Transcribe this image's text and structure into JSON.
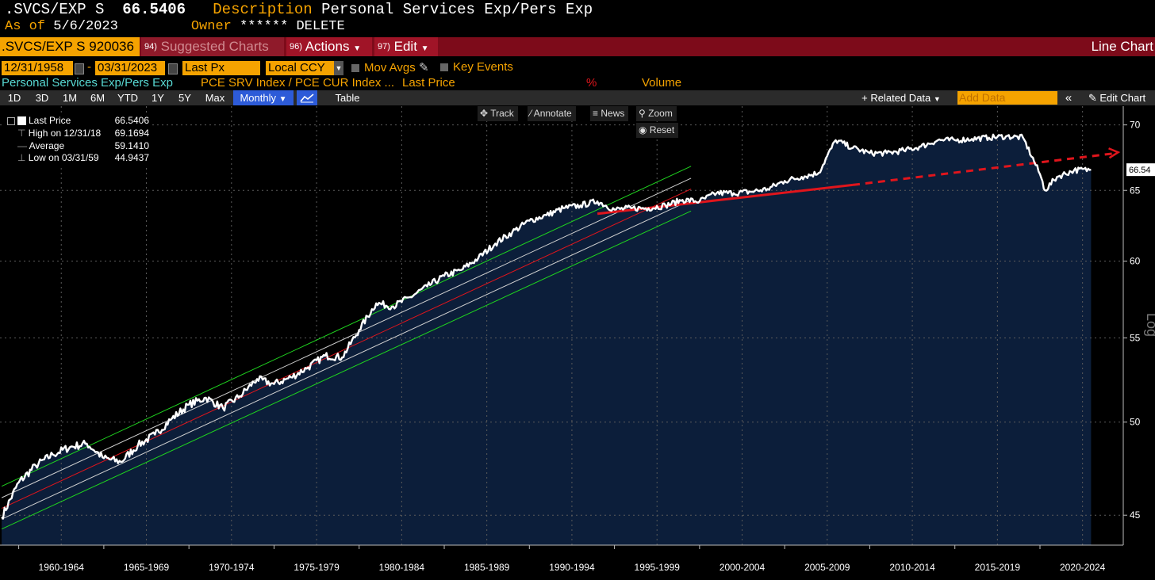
{
  "header": {
    "ticker": ".SVCS/EXP S",
    "last_value": "66.5406",
    "description_label": "Description",
    "description": "Personal Services Exp/Pers Exp",
    "as_of_label": "As of",
    "as_of_date": "5/6/2023",
    "owner_label": "Owner",
    "owner_value": "****** DELETE"
  },
  "toolbar": {
    "security": ".SVCS/EXP S 920036",
    "suggested_num": "94)",
    "suggested": "Suggested Charts",
    "actions_num": "96)",
    "actions": "Actions",
    "edit_num": "97)",
    "edit": "Edit",
    "chart_type": "Line Chart"
  },
  "range": {
    "start": "12/31/1958",
    "dash": "-",
    "end": "03/31/2023",
    "field": "Last Px",
    "currency": "Local CCY",
    "mov_avgs": "Mov Avgs",
    "key_events": "Key Events"
  },
  "series_row": {
    "name": "Personal Services Exp/Pers Exp",
    "formula": "PCE SRV Index / PCE CUR Index ...",
    "field": "Last Price",
    "pct": "%",
    "volume": "Volume"
  },
  "periods": [
    "1D",
    "3D",
    "1M",
    "6M",
    "YTD",
    "1Y",
    "5Y",
    "Max"
  ],
  "frequency": "Monthly",
  "table_label": "Table",
  "related_data": "Related Data",
  "add_data_placeholder": "Add Data",
  "edit_chart": "Edit Chart",
  "chart_tools": {
    "track": "Track",
    "annotate": "Annotate",
    "news": "News",
    "zoom": "Zoom",
    "reset": "Reset"
  },
  "legend": {
    "last_label": "Last Price",
    "last_value": "66.5406",
    "high_label": "High on 12/31/18",
    "high_value": "69.1694",
    "avg_label": "Average",
    "avg_value": "59.1410",
    "low_label": "Low on 03/31/59",
    "low_value": "44.9437"
  },
  "colors": {
    "accent": "#f5a300",
    "toolbar": "#7d0b1a",
    "area": "#0c1e3a",
    "trend_red": "#e0151c",
    "channel_green": "#1fd41f"
  },
  "chart_data": {
    "type": "area",
    "title": "Personal Services Exp/Pers Exp",
    "scale": "log",
    "ylim": [
      43.5,
      71.5
    ],
    "y_ticks": [
      45,
      50,
      55,
      60,
      65,
      70
    ],
    "x_labels": [
      "1960-1964",
      "1965-1969",
      "1970-1974",
      "1975-1979",
      "1980-1984",
      "1985-1989",
      "1990-1994",
      "1995-1999",
      "2000-2004",
      "2005-2009",
      "2010-2014",
      "2015-2019",
      "2020-2024"
    ],
    "axis_side_label": "Log",
    "last_value_label": "66.54",
    "grid": true,
    "series": [
      {
        "name": "Personal Services Exp/Pers Exp",
        "x": [
          1959.0,
          1960.0,
          1961.0,
          1962.0,
          1963.0,
          1964.0,
          1965.0,
          1966.0,
          1967.0,
          1968.0,
          1969.0,
          1970.0,
          1971.0,
          1972.0,
          1973.0,
          1974.0,
          1975.0,
          1976.0,
          1977.0,
          1978.0,
          1979.0,
          1980.0,
          1981.0,
          1982.0,
          1983.0,
          1984.0,
          1985.0,
          1986.0,
          1987.0,
          1988.0,
          1989.0,
          1990.0,
          1991.0,
          1992.0,
          1993.0,
          1994.0,
          1995.0,
          1996.0,
          1997.0,
          1998.0,
          1999.0,
          2000.0,
          2001.0,
          2002.0,
          2003.0,
          2004.0,
          2005.0,
          2006.0,
          2007.0,
          2008.0,
          2009.0,
          2010.0,
          2011.0,
          2012.0,
          2013.0,
          2014.0,
          2015.0,
          2016.0,
          2017.0,
          2018.0,
          2019.0,
          2020.0,
          2020.3,
          2021.0,
          2022.0,
          2023.0
        ],
        "values": [
          44.9,
          46.7,
          47.6,
          48.2,
          48.6,
          48.8,
          48.0,
          47.8,
          48.7,
          49.3,
          50.2,
          51.0,
          51.4,
          50.8,
          51.5,
          52.5,
          52.2,
          52.6,
          53.2,
          53.9,
          53.8,
          55.5,
          57.2,
          57.0,
          57.6,
          58.3,
          59.0,
          59.4,
          60.2,
          61.2,
          62.0,
          62.8,
          63.2,
          63.7,
          63.9,
          64.2,
          63.6,
          63.7,
          63.7,
          63.9,
          64.3,
          64.2,
          64.8,
          64.8,
          64.9,
          65.1,
          65.7,
          66.0,
          66.3,
          68.8,
          68.2,
          67.8,
          67.8,
          68.0,
          68.3,
          68.8,
          68.8,
          68.9,
          69.0,
          69.1,
          69.0,
          66.2,
          65.0,
          66.0,
          66.5,
          66.54
        ]
      }
    ],
    "overlays": [
      {
        "name": "upper channel",
        "kind": "line",
        "x": [
          1959.0,
          1999.5
        ],
        "values": [
          46.5,
          66.8
        ]
      },
      {
        "name": "mid channel upper",
        "kind": "line",
        "x": [
          1959.0,
          1999.5
        ],
        "values": [
          45.9,
          65.9
        ]
      },
      {
        "name": "regression",
        "kind": "line",
        "x": [
          1959.0,
          1999.5
        ],
        "values": [
          45.35,
          65.1
        ]
      },
      {
        "name": "mid channel lower",
        "kind": "line",
        "x": [
          1959.0,
          1999.5
        ],
        "values": [
          44.8,
          64.3
        ]
      },
      {
        "name": "lower channel",
        "kind": "line",
        "x": [
          1959.0,
          1999.5
        ],
        "values": [
          44.3,
          63.5
        ]
      },
      {
        "name": "trend",
        "kind": "solid",
        "x": [
          1994.0,
          2009.0
        ],
        "values": [
          63.3,
          65.4
        ]
      },
      {
        "name": "trend extension",
        "kind": "dashed",
        "x": [
          2009.0,
          2024.5
        ],
        "values": [
          65.4,
          67.8
        ]
      }
    ]
  }
}
